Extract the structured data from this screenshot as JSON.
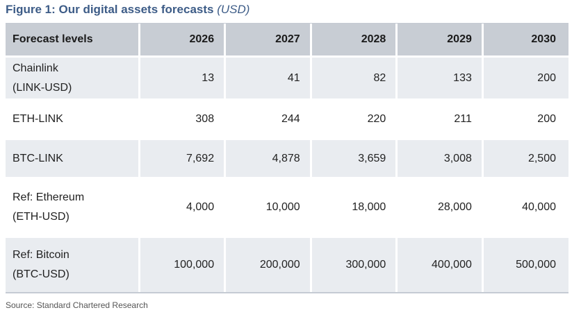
{
  "figure": {
    "title": "Figure 1: Our digital assets forecasts",
    "unit": "(USD)",
    "source": "Source:  Standard Chartered Research"
  },
  "table": {
    "header": {
      "label": "Forecast levels",
      "years": [
        "2026",
        "2027",
        "2028",
        "2029",
        "2030"
      ]
    },
    "rows": [
      {
        "label_lines": [
          "Chainlink",
          "(LINK-USD)"
        ],
        "values": [
          "13",
          "41",
          "82",
          "133",
          "200"
        ]
      },
      {
        "label_lines": [
          "ETH-LINK"
        ],
        "values": [
          "308",
          "244",
          "220",
          "211",
          "200"
        ]
      },
      {
        "label_lines": [
          "BTC-LINK"
        ],
        "values": [
          "7,692",
          "4,878",
          "3,659",
          "3,008",
          "2,500"
        ]
      },
      {
        "label_lines": [
          "Ref: Ethereum",
          "(ETH-USD)"
        ],
        "values": [
          "4,000",
          "10,000",
          "18,000",
          "28,000",
          "40,000"
        ]
      },
      {
        "label_lines": [
          "Ref: Bitcoin",
          "(BTC-USD)"
        ],
        "values": [
          "100,000",
          "200,000",
          "300,000",
          "400,000",
          "500,000"
        ]
      }
    ]
  }
}
